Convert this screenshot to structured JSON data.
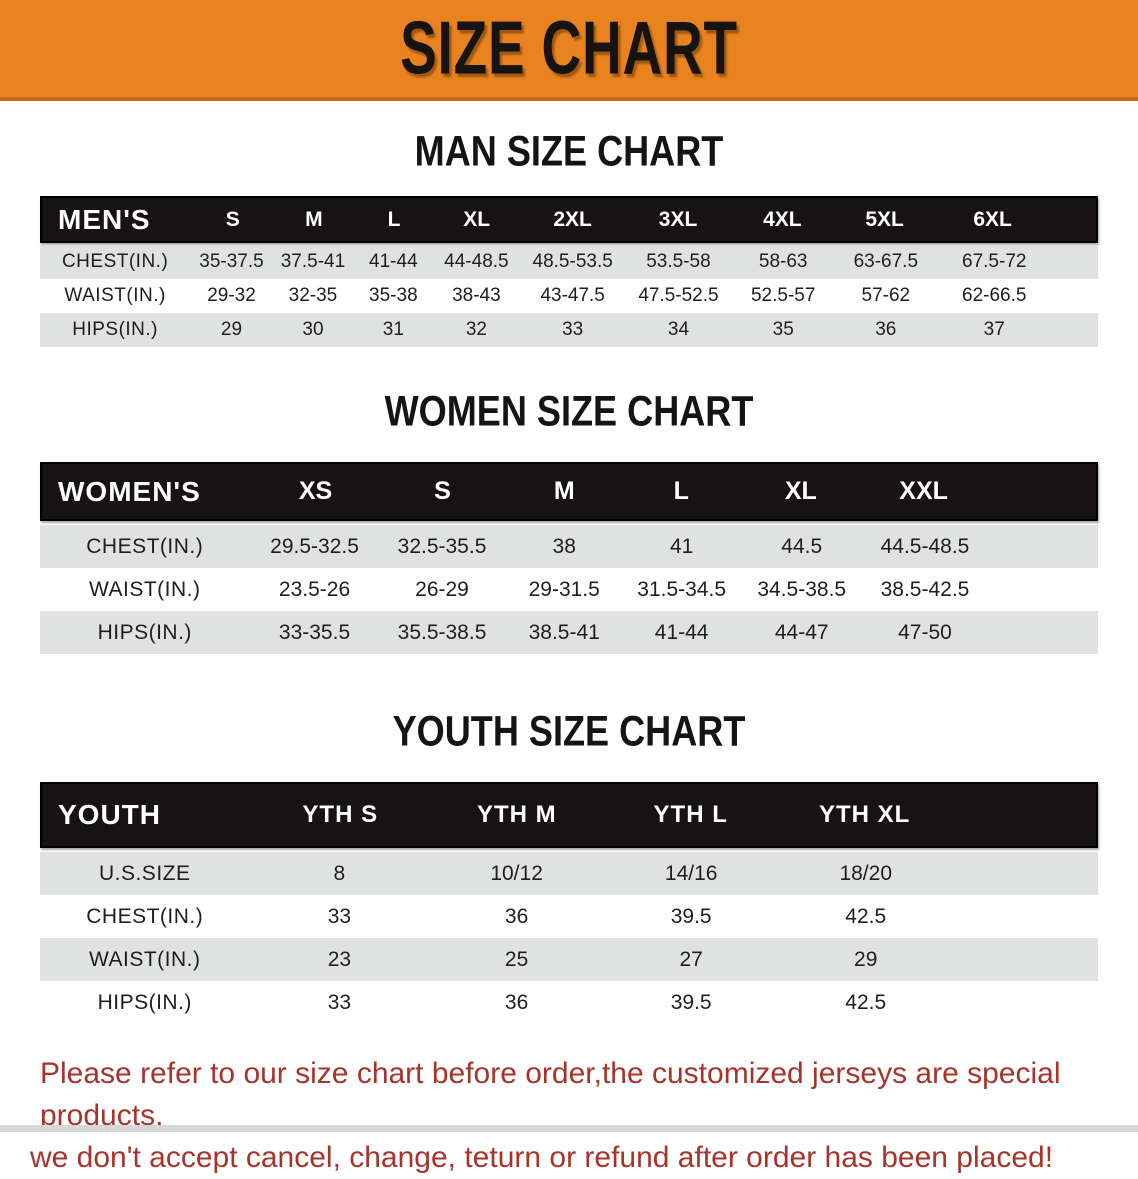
{
  "colors": {
    "banner_bg": "#E8831F",
    "banner_edge": "#C76A10",
    "header_bar": "#171314",
    "row_stripe": "#E0E1E1",
    "footer_text": "#A8332B"
  },
  "banner": {
    "title": "SIZE CHART"
  },
  "sections": [
    {
      "heading": "MAN SIZE CHART",
      "table": {
        "name": "men",
        "label": "MEN'S",
        "columns": [
          "S",
          "M",
          "L",
          "XL",
          "2XL",
          "3XL",
          "4XL",
          "5XL",
          "6XL"
        ],
        "rows": [
          {
            "label": "CHEST(IN.)",
            "values": [
              "35-37.5",
              "37.5-41",
              "41-44",
              "44-48.5",
              "48.5-53.5",
              "53.5-58",
              "58-63",
              "63-67.5",
              "67.5-72"
            ]
          },
          {
            "label": "WAIST(IN.)",
            "values": [
              "29-32",
              "32-35",
              "35-38",
              "38-43",
              "43-47.5",
              "47.5-52.5",
              "52.5-57",
              "57-62",
              "62-66.5"
            ]
          },
          {
            "label": "HIPS(IN.)",
            "values": [
              "29",
              "30",
              "31",
              "32",
              "33",
              "34",
              "35",
              "36",
              "37"
            ]
          }
        ]
      }
    },
    {
      "heading": "WOMEN SIZE CHART",
      "table": {
        "name": "women",
        "label": "WOMEN'S",
        "columns": [
          "XS",
          "S",
          "M",
          "L",
          "XL",
          "XXL"
        ],
        "rows": [
          {
            "label": "CHEST(IN.)",
            "values": [
              "29.5-32.5",
              "32.5-35.5",
              "38",
              "41",
              "44.5",
              "44.5-48.5"
            ]
          },
          {
            "label": "WAIST(IN.)",
            "values": [
              "23.5-26",
              "26-29",
              "29-31.5",
              "31.5-34.5",
              "34.5-38.5",
              "38.5-42.5"
            ]
          },
          {
            "label": "HIPS(IN.)",
            "values": [
              "33-35.5",
              "35.5-38.5",
              "38.5-41",
              "41-44",
              "44-47",
              "47-50"
            ]
          }
        ]
      }
    },
    {
      "heading": "YOUTH SIZE CHART",
      "table": {
        "name": "youth",
        "label": "YOUTH",
        "columns": [
          "YTH S",
          "YTH M",
          "YTH L",
          "YTH XL"
        ],
        "rows": [
          {
            "label": "U.S.SIZE",
            "values": [
              "8",
              "10/12",
              "14/16",
              "18/20"
            ]
          },
          {
            "label": "CHEST(IN.)",
            "values": [
              "33",
              "36",
              "39.5",
              "42.5"
            ]
          },
          {
            "label": "WAIST(IN.)",
            "values": [
              "23",
              "25",
              "27",
              "29"
            ]
          },
          {
            "label": "HIPS(IN.)",
            "values": [
              "33",
              "36",
              "39.5",
              "42.5"
            ]
          }
        ]
      }
    }
  ],
  "footer": {
    "line1": "Please refer to our size chart before order,the customized jerseys are special products,",
    "line2": "we don't accept cancel, change, teturn or refund after order has been placed!"
  }
}
